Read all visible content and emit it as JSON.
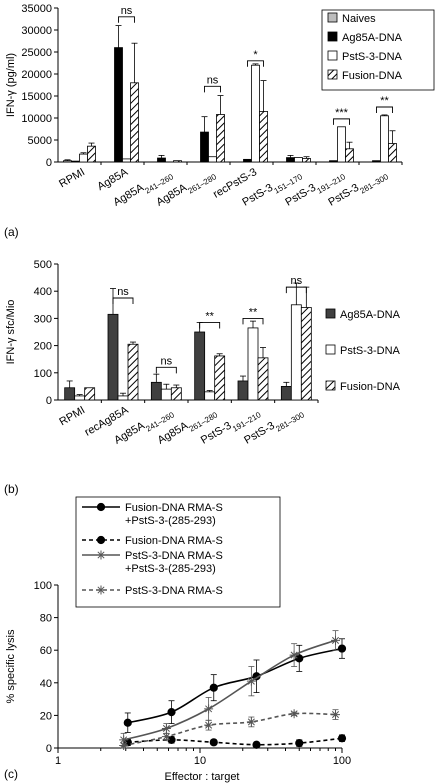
{
  "panels": {
    "a_label": "(a)",
    "b_label": "(b)",
    "c_label": "(c)"
  },
  "colors": {
    "naives": "#bdbdbd",
    "ag85a_dna": "#000000",
    "psts3_dna": "#ffffff",
    "fusion_dna": "hatched",
    "b_ag85a_dna": "#404040",
    "line_dark": "#000000",
    "line_gray": "#555555"
  },
  "chart_data": [
    {
      "type": "bar",
      "panel": "(a)",
      "ylabel": "IFN-γ (pg/ml)",
      "ylim": [
        0,
        35000
      ],
      "yticks": [
        "0",
        "5000",
        "10000",
        "15000",
        "20000",
        "25000",
        "30000",
        "35000"
      ],
      "yticks_values": [
        0,
        5000,
        10000,
        15000,
        20000,
        25000,
        30000,
        35000
      ],
      "categories": [
        "RPMI",
        "Ag85A",
        "Ag85A241–260",
        "Ag85A261–280",
        "recPstS-3",
        "PstS-3151–170",
        "PstS-3191–210",
        "PstS-3281–300"
      ],
      "category_parts": [
        [
          "RPMI",
          ""
        ],
        [
          "Ag85A",
          ""
        ],
        [
          "Ag85A",
          "241–260"
        ],
        [
          "Ag85A",
          "261–280"
        ],
        [
          "recPstS-3",
          ""
        ],
        [
          "PstS-3",
          "151–170"
        ],
        [
          "PstS-3",
          "191–210"
        ],
        [
          "PstS-3",
          "281–300"
        ]
      ],
      "legend_position": "top-right",
      "series": [
        {
          "name": "Naives",
          "fill": "naives",
          "values": [
            300,
            0,
            0,
            0,
            0,
            0,
            0,
            0
          ],
          "errors": [
            200,
            0,
            0,
            0,
            0,
            0,
            0,
            0
          ]
        },
        {
          "name": "Ag85A-DNA",
          "fill": "ag85a_dna",
          "values": [
            200,
            26000,
            900,
            6800,
            600,
            1000,
            300,
            300
          ],
          "errors": [
            0,
            5000,
            600,
            3500,
            0,
            500,
            0,
            0
          ]
        },
        {
          "name": "PstS-3-DNA",
          "fill": "psts3_dna",
          "values": [
            1800,
            700,
            0,
            1200,
            22000,
            1000,
            8000,
            10500
          ],
          "errors": [
            300,
            0,
            0,
            0,
            300,
            0,
            0,
            200
          ]
        },
        {
          "name": "Fusion-DNA",
          "fill": "fusion_dna",
          "values": [
            3600,
            18000,
            300,
            10800,
            11500,
            800,
            3000,
            4200
          ],
          "errors": [
            700,
            9000,
            0,
            4300,
            7000,
            400,
            1500,
            2900
          ]
        }
      ],
      "significance": [
        {
          "category_index": 1,
          "label": "ns",
          "bracket_top": 33000
        },
        {
          "category_index": 3,
          "label": "ns",
          "bracket_top": 17200
        },
        {
          "category_index": 4,
          "label": "*",
          "bracket_top": 23000
        },
        {
          "category_index": 6,
          "label": "***",
          "bracket_top": 9800
        },
        {
          "category_index": 7,
          "label": "**",
          "bracket_top": 12500
        }
      ]
    },
    {
      "type": "bar",
      "panel": "(b)",
      "ylabel": "IFN-γ sfc/Mio",
      "ylim": [
        0,
        500
      ],
      "yticks": [
        "0",
        "100",
        "200",
        "300",
        "400",
        "500"
      ],
      "yticks_values": [
        0,
        100,
        200,
        300,
        400,
        500
      ],
      "categories": [
        "RPMI",
        "recAg85A",
        "Ag85A241–260",
        "Ag85A261–280",
        "PstS-3191–210",
        "PstS-3281–300"
      ],
      "category_parts": [
        [
          "RPMI",
          ""
        ],
        [
          "recAg85A",
          ""
        ],
        [
          "Ag85A",
          "241–260"
        ],
        [
          "Ag85A",
          "261–280"
        ],
        [
          "PstS-3",
          "191–210"
        ],
        [
          "PstS-3",
          "281–300"
        ]
      ],
      "legend_position": "right",
      "series": [
        {
          "name": "Ag85A-DNA",
          "fill": "b_ag85a_dna",
          "values": [
            45,
            315,
            65,
            250,
            70,
            50
          ],
          "errors": [
            25,
            95,
            30,
            35,
            18,
            15
          ]
        },
        {
          "name": "PstS-3-DNA",
          "fill": "psts3_dna",
          "values": [
            15,
            15,
            40,
            30,
            265,
            350
          ],
          "errors": [
            5,
            10,
            18,
            5,
            25,
            80
          ]
        },
        {
          "name": "Fusion-DNA",
          "fill": "fusion_dna",
          "values": [
            45,
            205,
            45,
            162,
            155,
            340
          ],
          "errors": [
            0,
            8,
            10,
            8,
            38,
            75
          ]
        }
      ],
      "significance": [
        {
          "category_index": 1,
          "label": "ns",
          "bracket_top": 375
        },
        {
          "category_index": 2,
          "label": "ns",
          "bracket_top": 120
        },
        {
          "category_index": 3,
          "label": "**",
          "bracket_top": 285
        },
        {
          "category_index": 4,
          "label": "**",
          "bracket_top": 300
        },
        {
          "category_index": 5,
          "label": "ns",
          "bracket_top": 415
        }
      ]
    },
    {
      "type": "line",
      "panel": "(c)",
      "xlabel": "Effector : target",
      "ylabel": "% specific lysis",
      "xscale": "log",
      "xlim": [
        1,
        100
      ],
      "xticks": [
        "1",
        "10",
        "100"
      ],
      "xticks_values": [
        1,
        10,
        100
      ],
      "ylim": [
        0,
        100
      ],
      "yticks": [
        "0",
        "20",
        "40",
        "60",
        "80",
        "100"
      ],
      "yticks_values": [
        0,
        20,
        40,
        60,
        80,
        100
      ],
      "legend_position": "top-left",
      "series": [
        {
          "name": "Fusion-DNA RMA-S +PstS-3-(285-293)",
          "name_lines": [
            "Fusion-DNA RMA-S",
            "+PstS-3-(285-293)"
          ],
          "marker": "circle",
          "dash": false,
          "color": "line_dark",
          "x": [
            3.1,
            6.3,
            12.5,
            25,
            50,
            100
          ],
          "y": [
            15.5,
            22,
            37,
            44,
            55,
            61
          ],
          "errors": [
            6,
            7,
            8,
            10,
            8,
            6
          ]
        },
        {
          "name": "Fusion-DNA RMA-S",
          "name_lines": [
            "Fusion-DNA RMA-S"
          ],
          "marker": "circle",
          "dash": true,
          "color": "line_dark",
          "x": [
            3.1,
            6.3,
            12.5,
            25,
            50,
            100
          ],
          "y": [
            3.5,
            5,
            3.5,
            2,
            3,
            6
          ],
          "errors": [
            2,
            2,
            1.5,
            1.5,
            2,
            2
          ]
        },
        {
          "name": "PstS-3-DNA RMA-S +PstS-3-(285-293)",
          "name_lines": [
            "PstS-3-DNA RMA-S",
            "+PstS-3-(285-293)"
          ],
          "marker": "star",
          "dash": false,
          "color": "line_gray",
          "x": [
            2.9,
            5.8,
            11.5,
            23,
            46,
            90
          ],
          "y": [
            5,
            12,
            24,
            41,
            57,
            66
          ],
          "errors": [
            4,
            3,
            7,
            9,
            7,
            6
          ]
        },
        {
          "name": "PstS-3-DNA RMA-S",
          "name_lines": [
            "PstS-3-DNA RMA-S"
          ],
          "marker": "star",
          "dash": true,
          "color": "line_gray",
          "x": [
            2.9,
            5.8,
            11.5,
            23,
            46,
            90
          ],
          "y": [
            1.5,
            7,
            14,
            16,
            21,
            20.5
          ],
          "errors": [
            1.5,
            2,
            3,
            3,
            1,
            3
          ]
        }
      ]
    }
  ]
}
